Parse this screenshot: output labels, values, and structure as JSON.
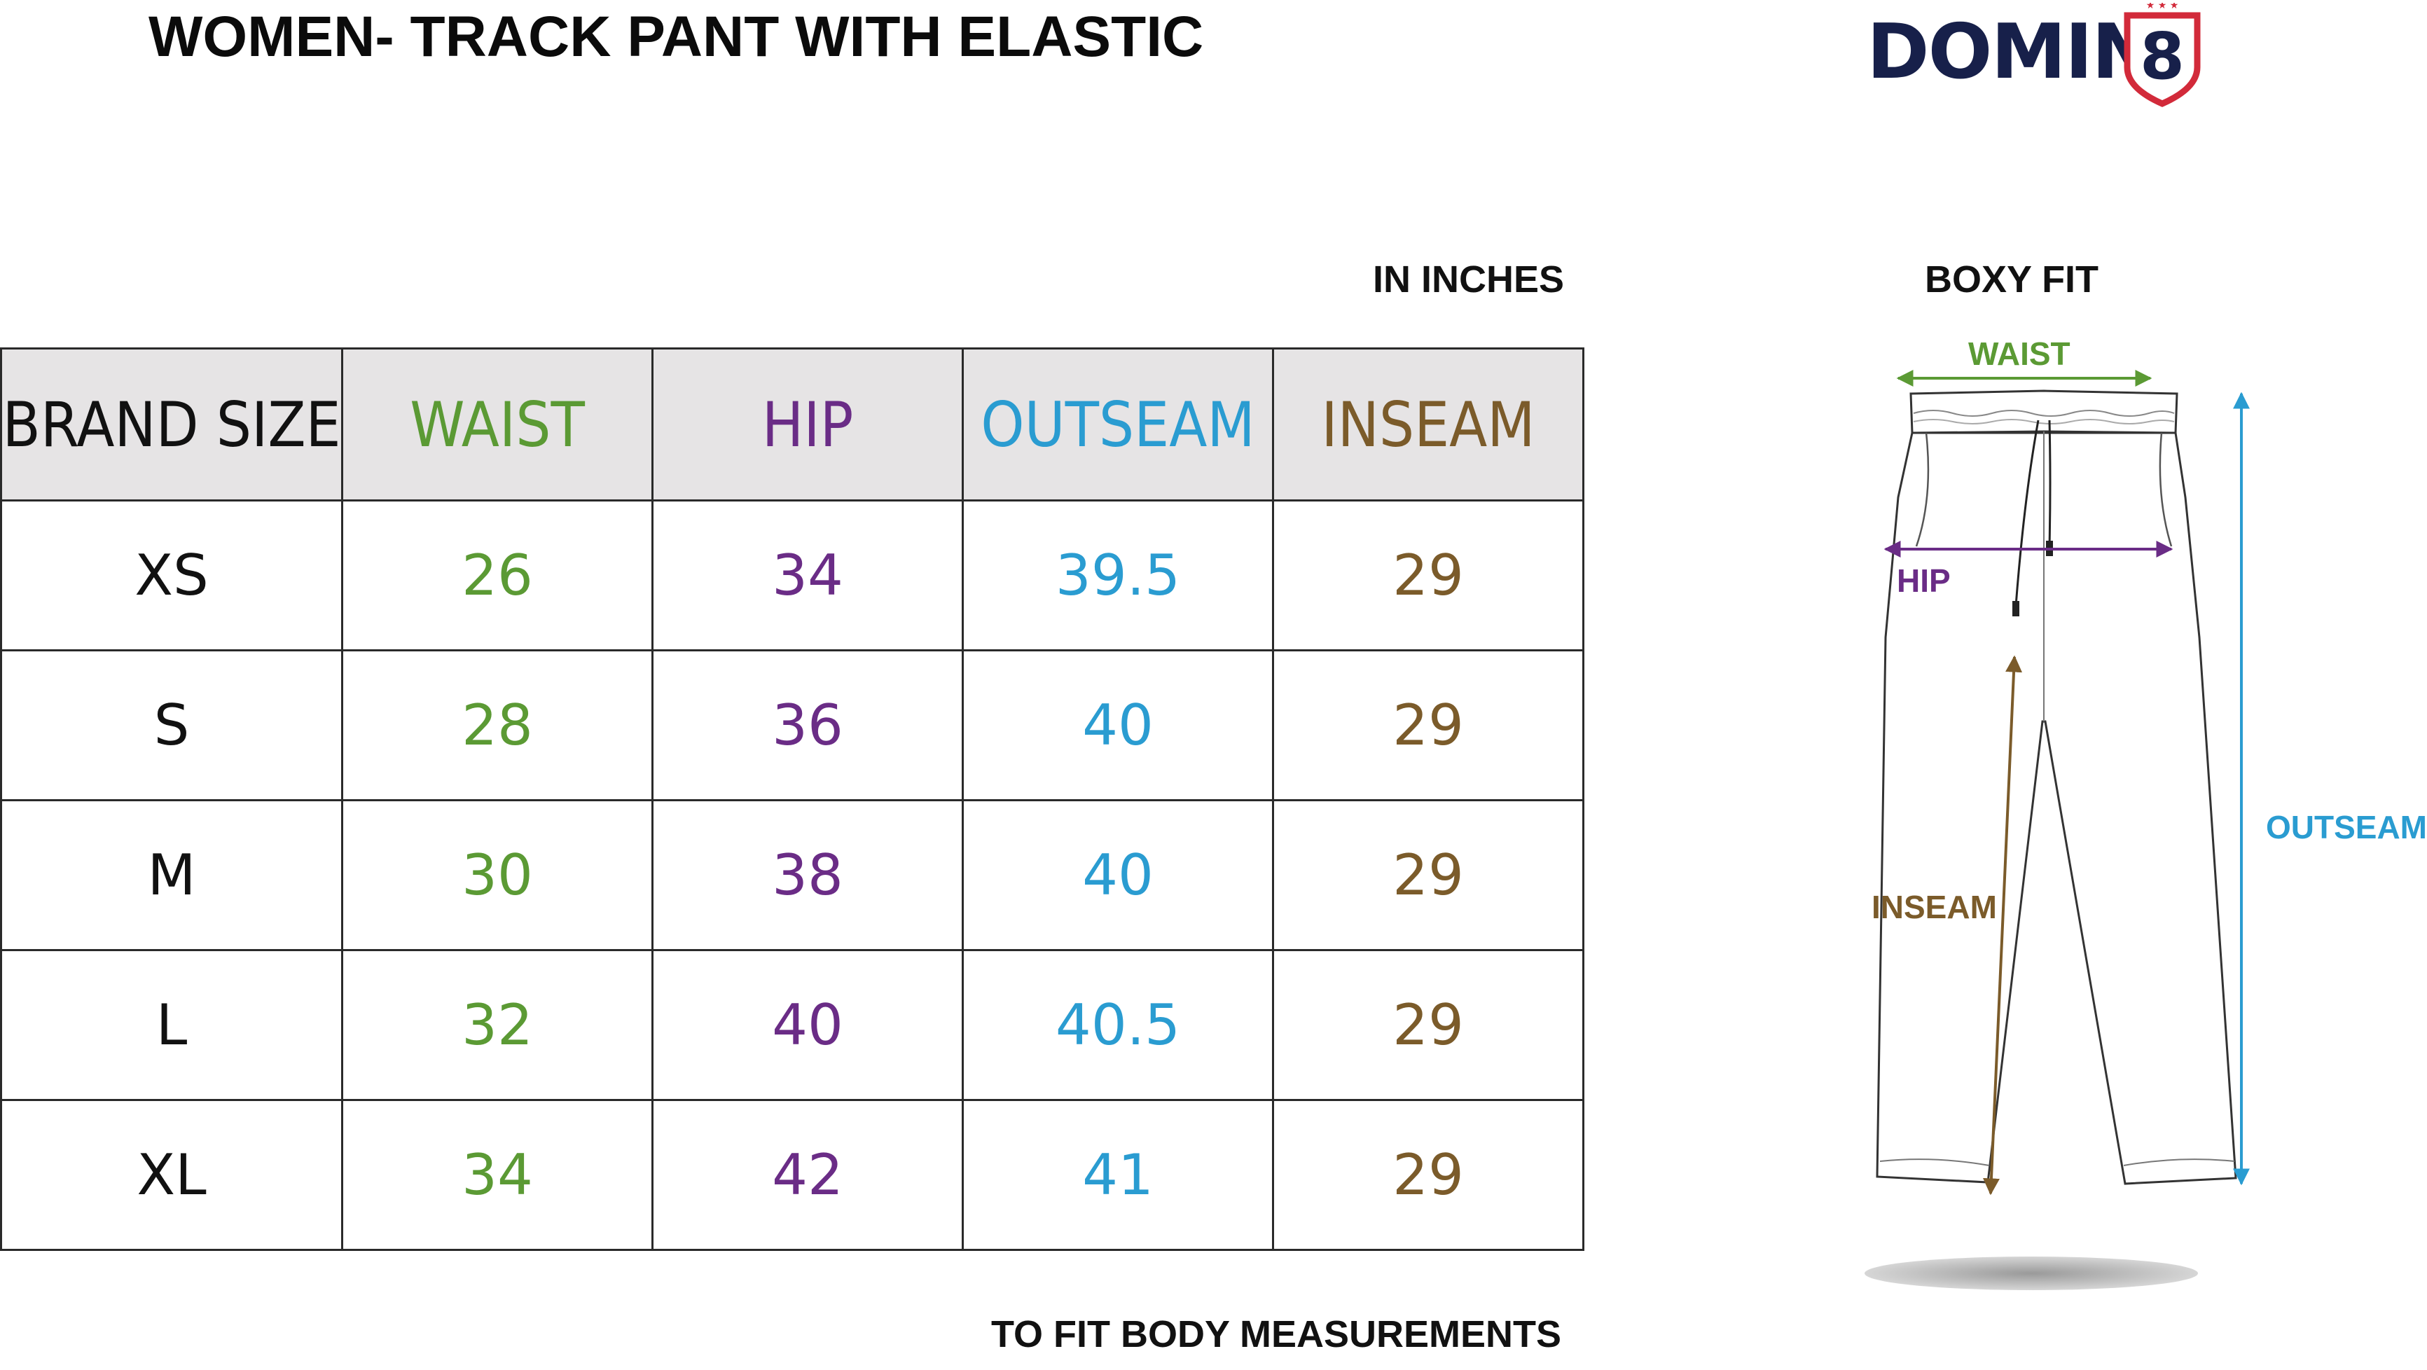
{
  "title": "WOMEN- TRACK PANT WITH ELASTIC",
  "brand": {
    "logo_text": "DOMIN",
    "logo_badge": "8"
  },
  "unit_label": "IN INCHES",
  "fit_label": "BOXY FIT",
  "footer_note": "TO FIT BODY MEASUREMENTS",
  "colors": {
    "waist": "#5b9a34",
    "hip": "#6a2c86",
    "outseam": "#2a9cd1",
    "inseam": "#7b5b2a",
    "header_bg": "#e6e4e5",
    "logo": "#17204a",
    "logo_badge": "#d22a3a"
  },
  "table": {
    "headers": [
      "BRAND SIZE",
      "WAIST",
      "HIP",
      "OUTSEAM",
      "INSEAM"
    ],
    "rows": [
      [
        "XS",
        "26",
        "34",
        "39.5",
        "29"
      ],
      [
        "S",
        "28",
        "36",
        "40",
        "29"
      ],
      [
        "M",
        "30",
        "38",
        "40",
        "29"
      ],
      [
        "L",
        "32",
        "40",
        "40.5",
        "29"
      ],
      [
        "XL",
        "34",
        "42",
        "41",
        "29"
      ]
    ]
  },
  "diagram": {
    "waist_label": "WAIST",
    "hip_label": "HIP",
    "outseam_label": "OUTSEAM",
    "inseam_label": "INSEAM"
  }
}
